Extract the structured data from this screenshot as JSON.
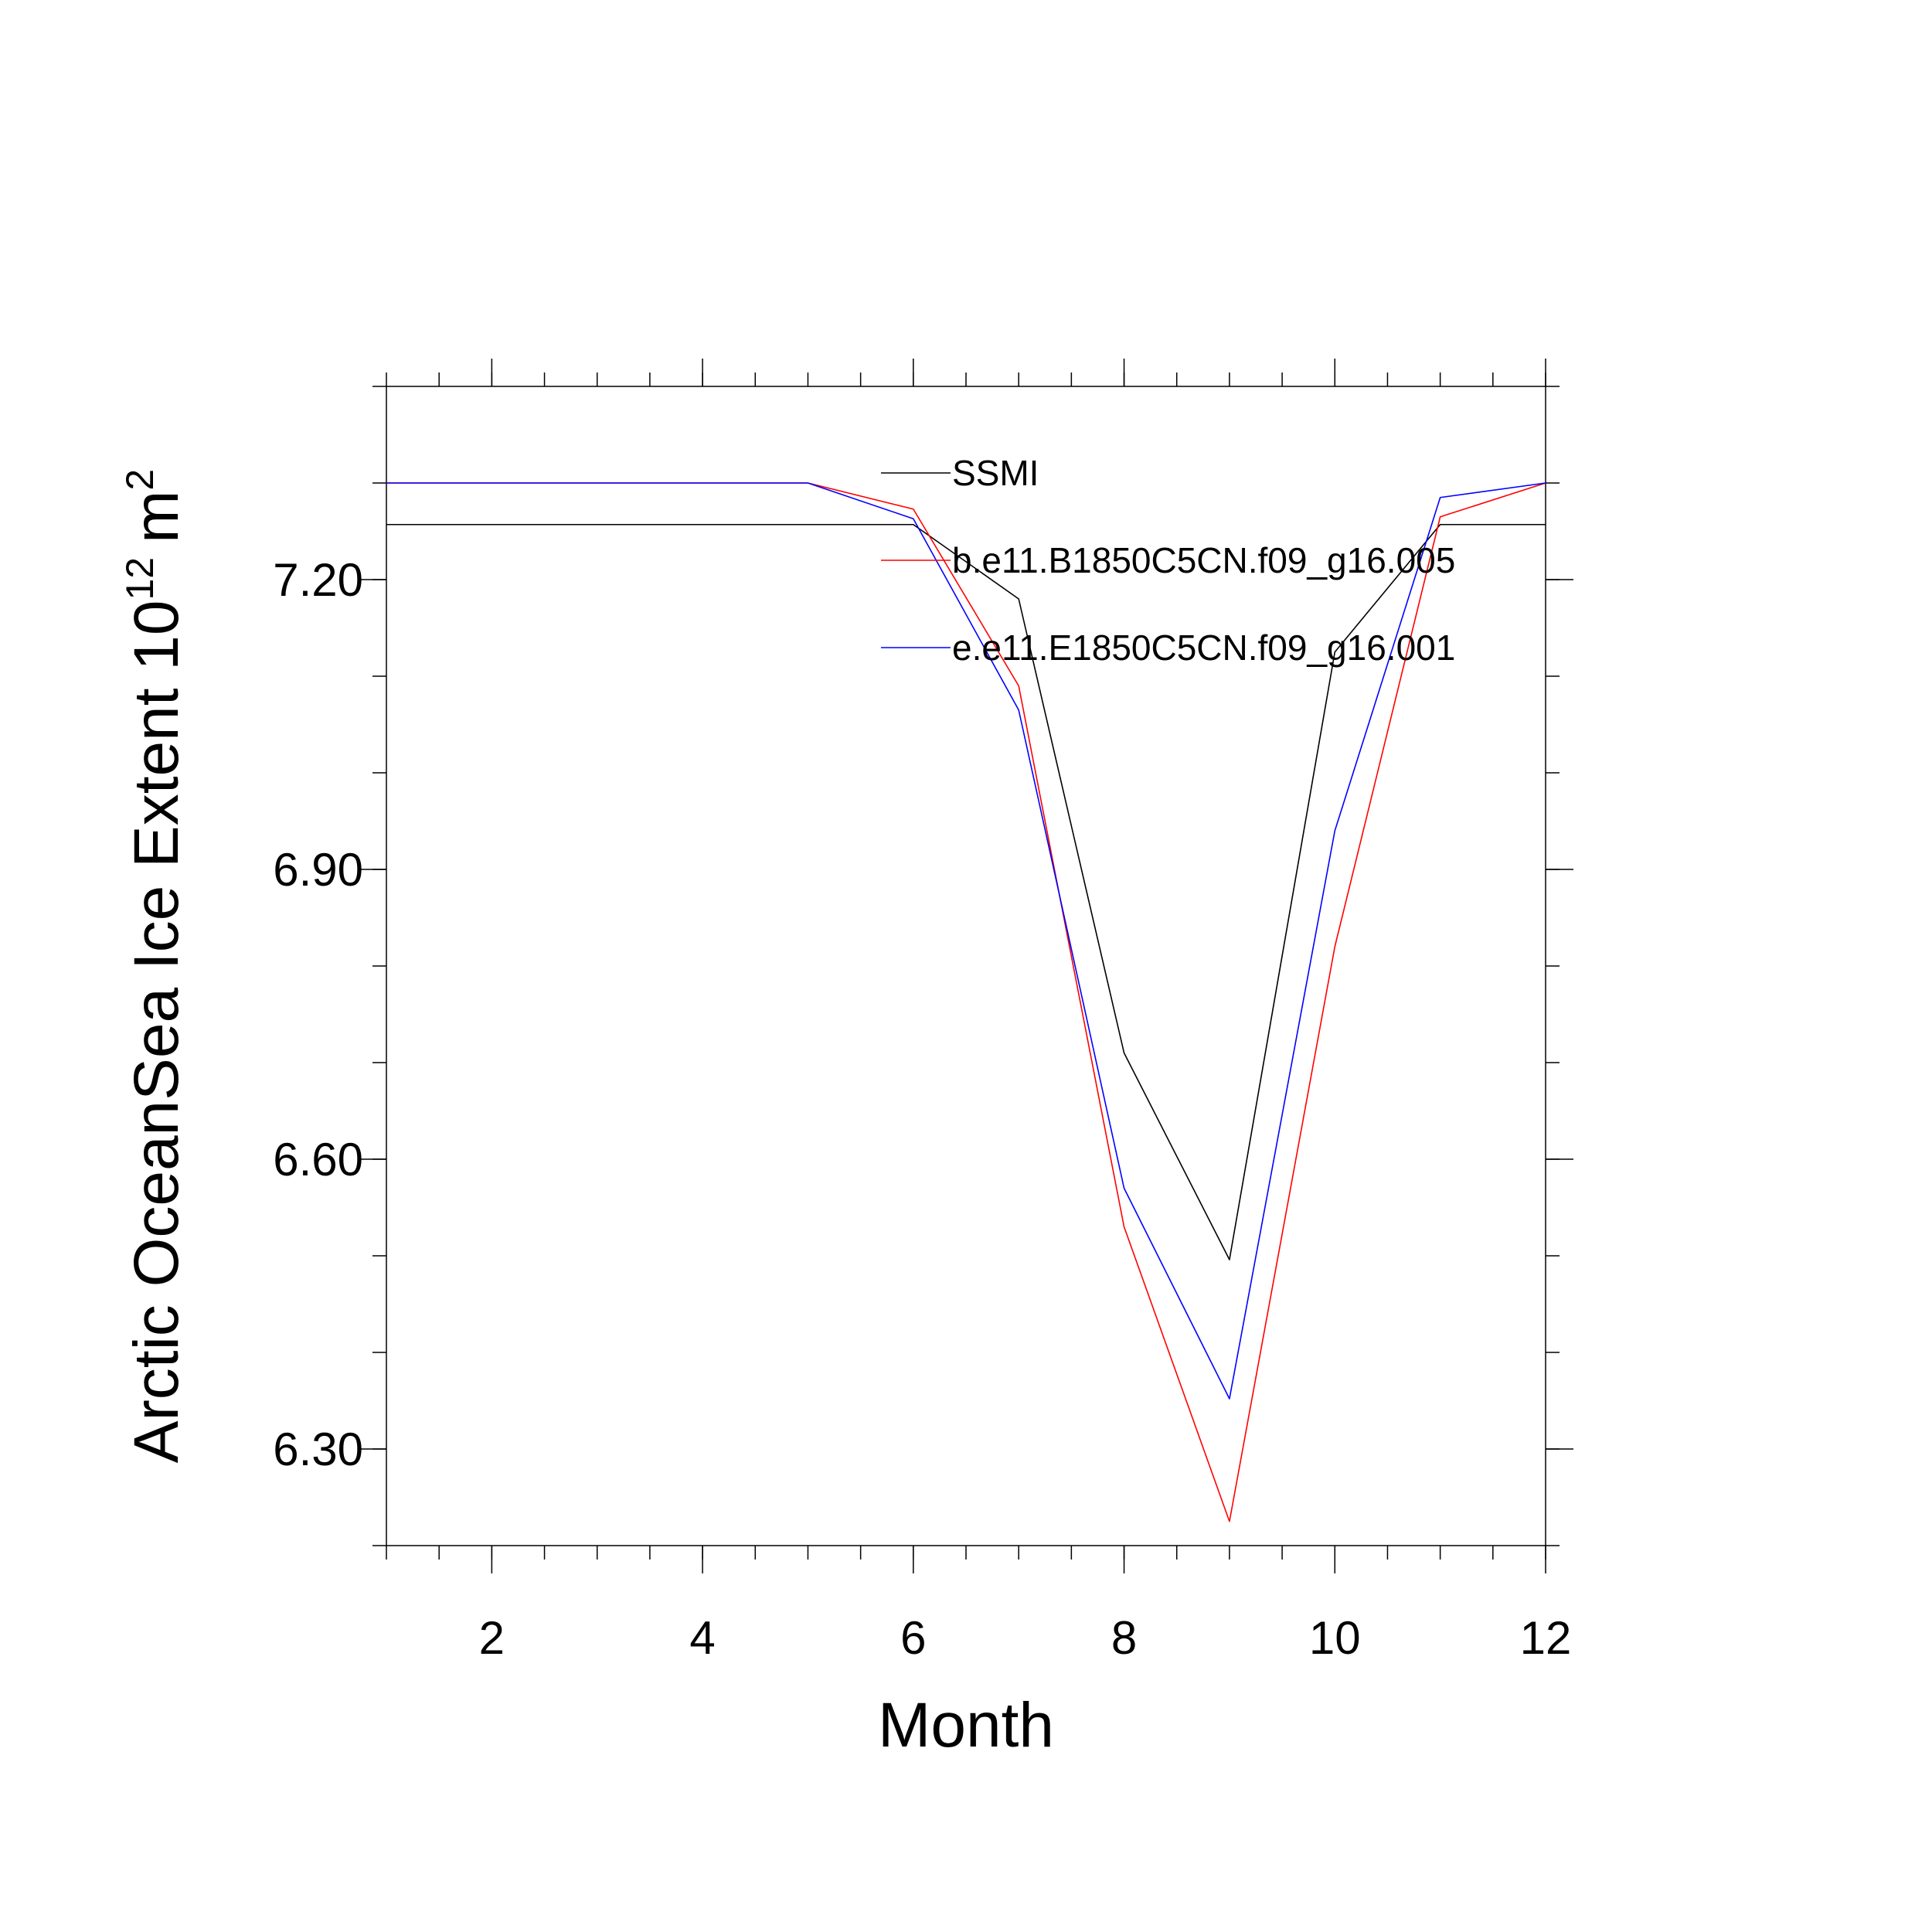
{
  "chart_data": {
    "type": "line",
    "title": "",
    "xlabel": "Month",
    "ylabel": "Arctic OceanSea Ice Extent 10",
    "ylabel_exponent": "12",
    "ylabel_unit": "m",
    "ylabel_unit_exponent": "2",
    "xlim": [
      1,
      12
    ],
    "ylim": [
      6.2,
      7.4
    ],
    "x_ticks": [
      2,
      4,
      6,
      8,
      10,
      12
    ],
    "x_tick_labels": [
      "2",
      "4",
      "6",
      "8",
      "10",
      "12"
    ],
    "y_ticks": [
      6.3,
      6.6,
      6.9,
      7.2
    ],
    "y_tick_labels": [
      "6.30",
      "6.60",
      "6.90",
      "7.20"
    ],
    "grid": false,
    "legend_position": "top-right",
    "x": [
      1,
      2,
      3,
      4,
      5,
      6,
      7,
      8,
      9,
      10,
      11,
      12
    ],
    "series": [
      {
        "name": "SSMI",
        "color": "#000000",
        "values": [
          7.257,
          7.257,
          7.257,
          7.257,
          7.257,
          7.257,
          7.18,
          6.71,
          6.496,
          7.125,
          7.257,
          7.257
        ]
      },
      {
        "name": "b.e11.B1850C5CN.f09_g16.005",
        "color": "#ff0000",
        "values": [
          7.3,
          7.3,
          7.3,
          7.3,
          7.3,
          7.273,
          7.09,
          6.53,
          6.225,
          6.82,
          7.265,
          7.3
        ]
      },
      {
        "name": "e.e11.E1850C5CN.f09_g16.001",
        "color": "#0000ff",
        "values": [
          7.3,
          7.3,
          7.3,
          7.3,
          7.3,
          7.263,
          7.065,
          6.57,
          6.352,
          6.94,
          7.285,
          7.3
        ]
      }
    ]
  }
}
